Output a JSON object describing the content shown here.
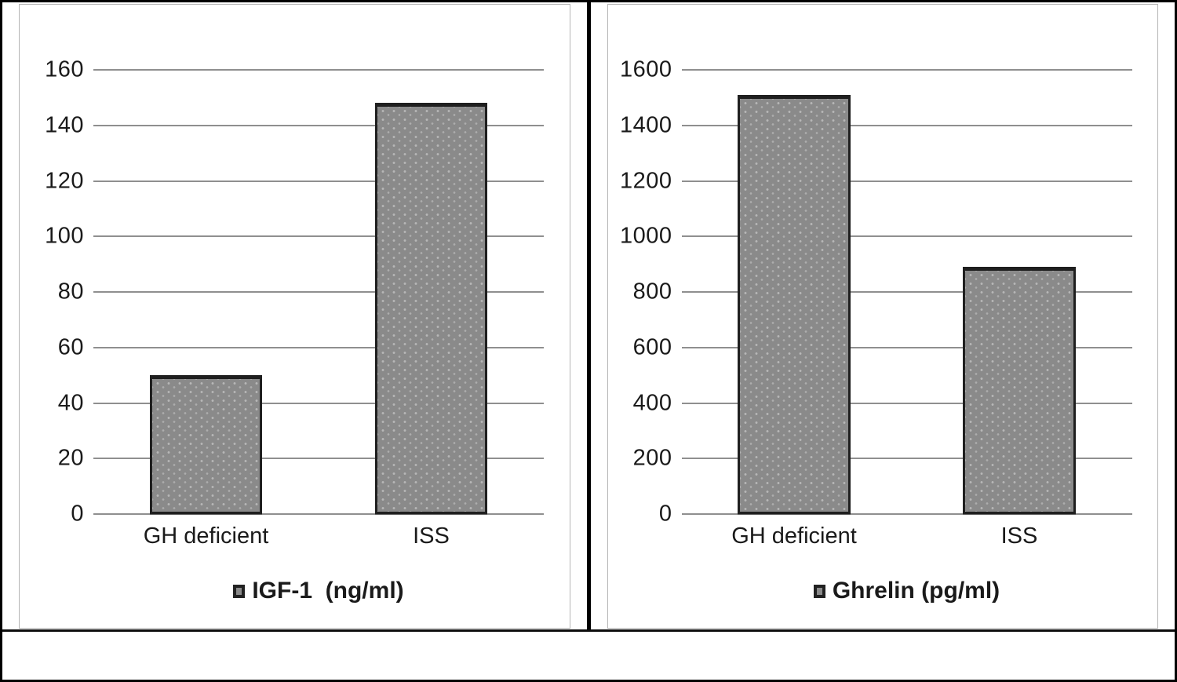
{
  "chart_data": [
    {
      "type": "bar",
      "title": "",
      "categories": [
        "GH deficient",
        "ISS"
      ],
      "values": [
        50,
        148
      ],
      "legend": "IGF-1  (ng/ml)",
      "ylabel": "",
      "xlabel": "",
      "ylim": [
        0,
        160
      ],
      "ytick_step": 20,
      "yticks": [
        0,
        20,
        40,
        60,
        80,
        100,
        120,
        140,
        160
      ],
      "grid": true,
      "legend_position": "bottom",
      "bar_color": "#8a8a8a",
      "bar_border_color": "#1f1f1f"
    },
    {
      "type": "bar",
      "title": "",
      "categories": [
        "GH deficient",
        "ISS"
      ],
      "values": [
        1510,
        890
      ],
      "legend": "Ghrelin (pg/ml)",
      "ylabel": "",
      "xlabel": "",
      "ylim": [
        0,
        1600
      ],
      "ytick_step": 200,
      "yticks": [
        0,
        200,
        400,
        600,
        800,
        1000,
        1200,
        1400,
        1600
      ],
      "grid": true,
      "legend_position": "bottom",
      "bar_color": "#8a8a8a",
      "bar_border_color": "#1f1f1f"
    }
  ],
  "colors": {
    "background": "#ffffff",
    "outer_border": "#000000",
    "divider": "#000000",
    "gridline": "#8f8f8f",
    "frame": "#b5b5b5",
    "text": "#1a1a1a",
    "bar_fill": "#8a8a8a",
    "bar_dot": "#b8b8b8"
  }
}
